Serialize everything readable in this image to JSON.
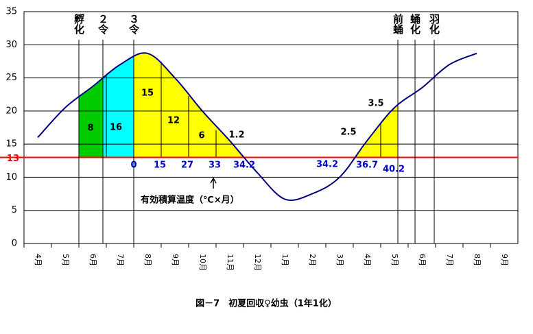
{
  "chart_data": {
    "type": "line",
    "title": "図－7　初夏回収♀幼虫（1年1化）",
    "categories": [
      "4月",
      "5月",
      "6月",
      "7月",
      "8月",
      "9月",
      "10月",
      "11月",
      "12月",
      "1月",
      "2月",
      "3月",
      "4月",
      "5月",
      "6月",
      "7月",
      "8月",
      "9月"
    ],
    "series": [
      {
        "color": "#000080",
        "values": [
          16,
          20.5,
          23.7,
          27,
          28.7,
          25,
          20,
          15.5,
          10.7,
          6.7,
          7.5,
          10,
          15.5,
          20.5,
          23.5,
          27,
          28.7,
          null
        ]
      }
    ],
    "ylim": [
      0,
      35
    ],
    "yticks": [
      0,
      5,
      10,
      15,
      20,
      25,
      30,
      35
    ],
    "grid": true,
    "threshold": {
      "value": 13,
      "color": "#ff0000"
    },
    "stages": [
      "孵化",
      "２令",
      "３令",
      "前蛹",
      "蛹化",
      "羽化"
    ],
    "fills": [
      {
        "color": "#00cc00"
      },
      {
        "color": "#00ffff"
      },
      {
        "color": "#ffff00"
      },
      {
        "color": "#ffff00"
      }
    ],
    "monthly_sums": [
      8,
      16,
      15,
      12,
      6,
      1.2,
      3.5,
      2.5
    ],
    "cumulative_sums": [
      0,
      15,
      27,
      33,
      34.2,
      34.2,
      36.7,
      40.2
    ],
    "annotation": "有効積算温度（℃×月）"
  }
}
